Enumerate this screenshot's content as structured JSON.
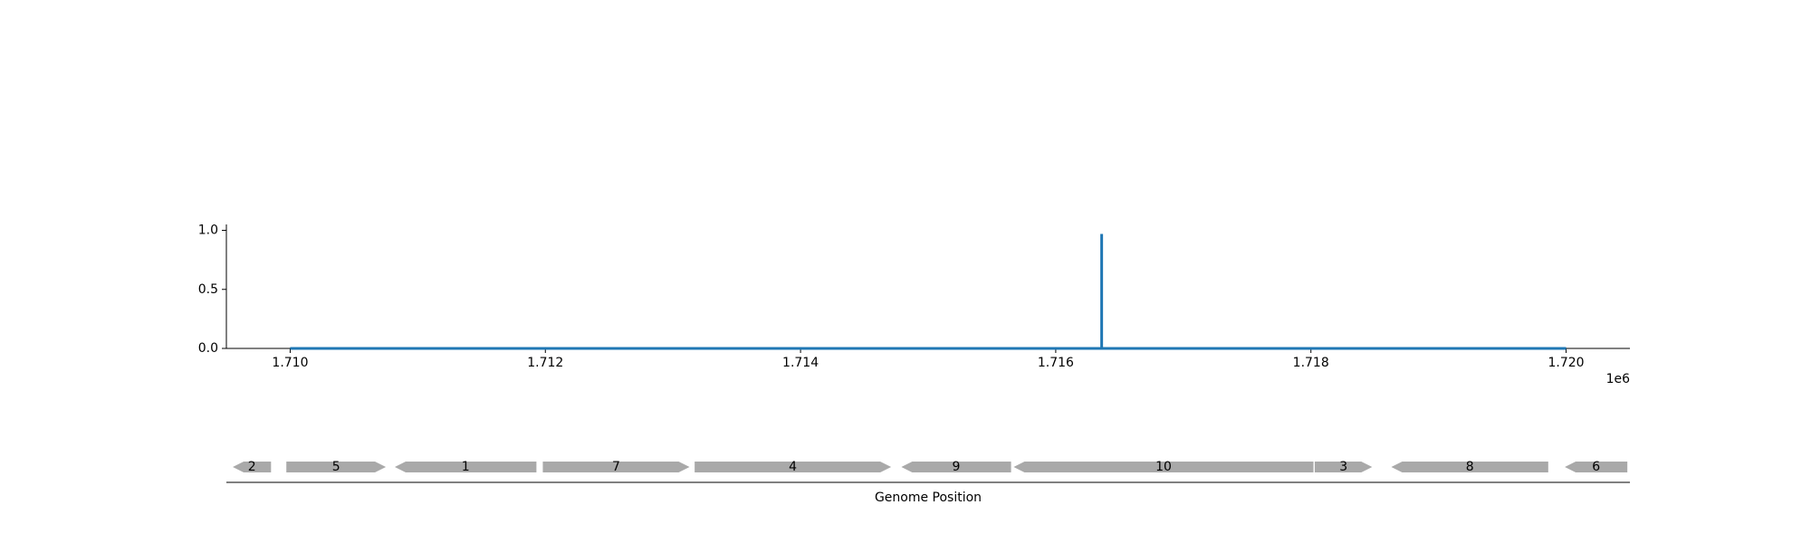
{
  "chart_data": [
    {
      "type": "line",
      "title": "",
      "xlabel": "",
      "ylabel": "",
      "x_offset_label": "1e6",
      "xlim": [
        1709500,
        1720500
      ],
      "ylim": [
        0.0,
        1.05
      ],
      "x_ticks": [
        1710000,
        1712000,
        1714000,
        1716000,
        1718000,
        1720000
      ],
      "x_tick_labels": [
        "1.710",
        "1.712",
        "1.714",
        "1.716",
        "1.718",
        "1.720"
      ],
      "y_ticks": [
        0.0,
        0.5,
        1.0
      ],
      "y_tick_labels": [
        "0.0",
        "0.5",
        "1.0"
      ],
      "grid": false,
      "series": [
        {
          "color": "#1f77b4",
          "x": [
            1710000,
            1716360,
            1716360,
            1716360,
            1716360,
            1720000
          ],
          "y": [
            0.0,
            0.0,
            0.97,
            0.97,
            0.0,
            0.0
          ]
        }
      ]
    },
    {
      "type": "gene_map",
      "xlabel": "Genome Position",
      "color": "#a9a9a9",
      "genes": [
        {
          "label": "2",
          "start": 1709550,
          "end": 1709850,
          "strand": "-"
        },
        {
          "label": "5",
          "start": 1709970,
          "end": 1710750,
          "strand": "+"
        },
        {
          "label": "1",
          "start": 1710820,
          "end": 1711930,
          "strand": "-"
        },
        {
          "label": "7",
          "start": 1711980,
          "end": 1713130,
          "strand": "+"
        },
        {
          "label": "4",
          "start": 1713170,
          "end": 1714710,
          "strand": "+"
        },
        {
          "label": "9",
          "start": 1714790,
          "end": 1715650,
          "strand": "-"
        },
        {
          "label": "10",
          "start": 1715670,
          "end": 1718020,
          "strand": "-"
        },
        {
          "label": "3",
          "start": 1718030,
          "end": 1718480,
          "strand": "+"
        },
        {
          "label": "8",
          "start": 1718630,
          "end": 1719860,
          "strand": "-"
        },
        {
          "label": "6",
          "start": 1719990,
          "end": 1720480,
          "strand": "-"
        }
      ]
    }
  ]
}
